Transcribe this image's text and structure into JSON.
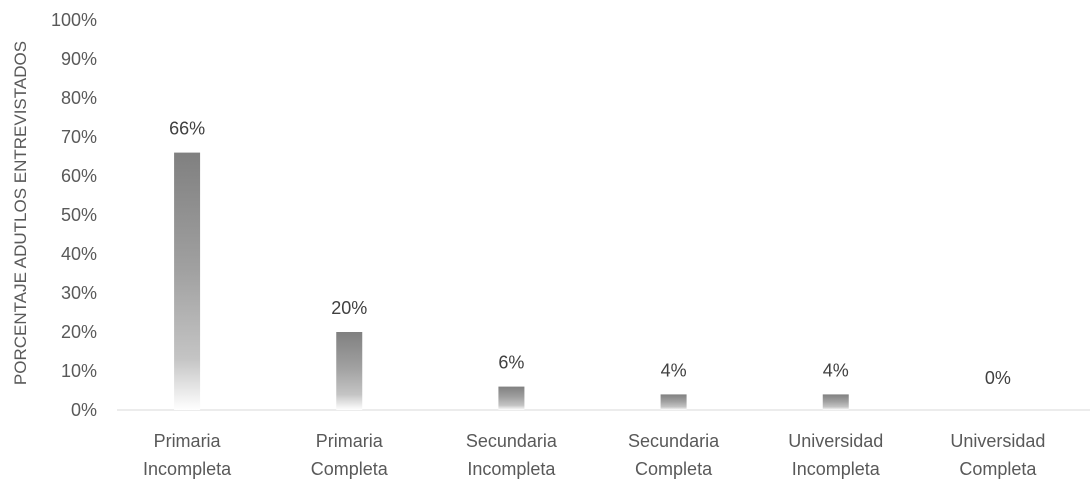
{
  "chart_data": {
    "type": "bar",
    "title": "",
    "xlabel": "",
    "ylabel": "PORCENTAJE ADUTLOS ENTREVISTADOS",
    "categories": [
      [
        "Primaria",
        "Incompleta"
      ],
      [
        "Primaria",
        "Completa"
      ],
      [
        "Secundaria",
        "Incompleta"
      ],
      [
        "Secundaria",
        "Completa"
      ],
      [
        "Universidad",
        "Incompleta"
      ],
      [
        "Universidad",
        "Completa"
      ]
    ],
    "values": [
      66,
      20,
      6,
      4,
      4,
      0
    ],
    "data_labels": [
      "66%",
      "20%",
      "6%",
      "4%",
      "4%",
      "0%"
    ],
    "ylim": [
      0,
      100
    ],
    "yticks": [
      0,
      10,
      20,
      30,
      40,
      50,
      60,
      70,
      80,
      90,
      100
    ],
    "ytick_labels": [
      "0%",
      "10%",
      "20%",
      "30%",
      "40%",
      "50%",
      "60%",
      "70%",
      "80%",
      "90%",
      "100%"
    ],
    "grid": false,
    "legend": "none",
    "colors": {
      "bar_top": "#808080",
      "bar_bottom": "#ffffff",
      "axis": "#d9d9d9",
      "text": "#595959"
    }
  }
}
